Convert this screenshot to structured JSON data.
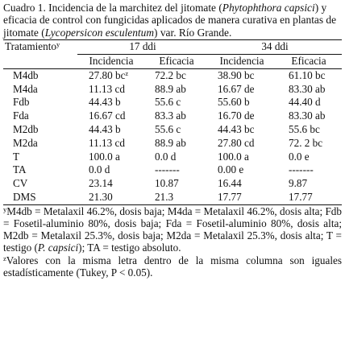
{
  "caption": {
    "lead": "Cuadro 1. Incidencia de la marchitez del jitomate (",
    "pathogen": "Phytophthora capsici",
    "mid": ") y eficacia de control con fungicidas aplicados de manera curativa en plantas de jitomate (",
    "host": "Lycopersicon esculentum",
    "tail": ") var. Río Grande."
  },
  "table": {
    "header_treatment": "Tratamiento",
    "header_treatment_sup": "y",
    "groups": [
      "17 ddi",
      "34 ddi"
    ],
    "subheaders": [
      "Incidencia",
      "Eficacia",
      "Incidencia",
      "Eficacia"
    ],
    "rows": [
      {
        "treatment": "M4db",
        "cells": [
          "27.80 bc",
          "72.2 bc",
          "38.90 bc",
          "61.10 bc"
        ],
        "first_sup": "z"
      },
      {
        "treatment": "M4da",
        "cells": [
          "11.13 cd",
          "88.9 ab",
          "16.67 de",
          "83.30 ab"
        ],
        "first_sup": ""
      },
      {
        "treatment": "Fdb",
        "cells": [
          "44.43 b",
          "55.6 c",
          "55.60 b",
          "44.40 d"
        ],
        "first_sup": ""
      },
      {
        "treatment": "Fda",
        "cells": [
          "16.67 cd",
          "83.3 ab",
          "16.70 de",
          "83.30 ab"
        ],
        "first_sup": ""
      },
      {
        "treatment": "M2db",
        "cells": [
          "44.43 b",
          "55.6 c",
          "44.43 bc",
          "55.6 bc"
        ],
        "first_sup": ""
      },
      {
        "treatment": "M2da",
        "cells": [
          "11.13 cd",
          "88.9 ab",
          "27.80 cd",
          "72. 2 bc"
        ],
        "first_sup": ""
      },
      {
        "treatment": "T",
        "cells": [
          "100.0 a",
          "0.0 d",
          "100.0 a",
          "0.0 e"
        ],
        "first_sup": ""
      },
      {
        "treatment": "TA",
        "cells": [
          "0.0 d",
          "-------",
          "0.00 e",
          "-------"
        ],
        "first_sup": ""
      },
      {
        "treatment": "CV",
        "cells": [
          "23.14",
          "10.87",
          "16.44",
          "9.87"
        ],
        "first_sup": ""
      },
      {
        "treatment": "DMS",
        "cells": [
          "21.30",
          "21.3",
          "17.77",
          "17.77"
        ],
        "first_sup": ""
      }
    ]
  },
  "footnotes": {
    "y_sup": "y",
    "y_text_a": "M4db = Metalaxil 46.2%, dosis baja; M4da = Metalaxil 46.2%, dosis alta; Fdb = Fosetil-aluminio 80%, dosis baja; Fda = Fosetil-aluminio 80%, dosis alta; M2db = Metalaxil 25.3%, dosis baja; M2da = Metalaxil 25.3%, dosis alta; T = testigo (",
    "y_text_italic": "P. capsici",
    "y_text_b": "); TA = testigo absoluto.",
    "z_sup": "z",
    "z_text": "Valores con la misma letra dentro de la misma columna son iguales estadísticamente (Tukey, P < 0.05)."
  }
}
